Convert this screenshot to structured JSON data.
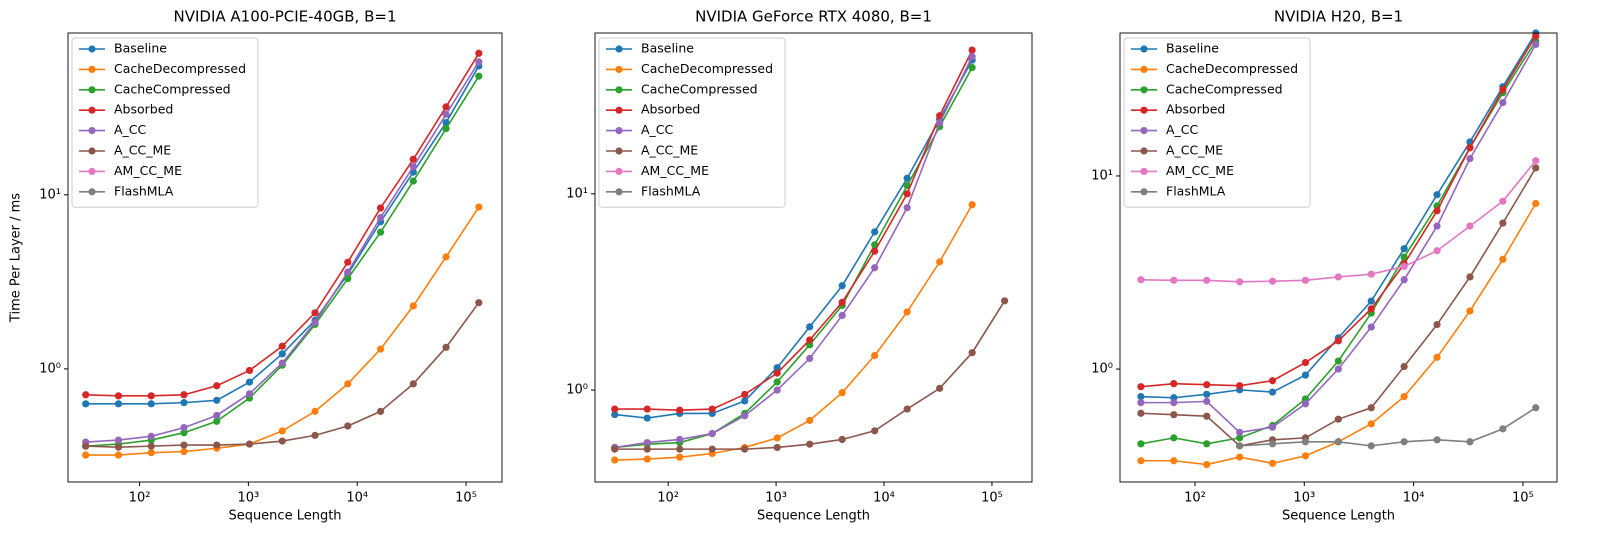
{
  "chart_data": [
    {
      "type": "line",
      "title": "NVIDIA A100-PCIE-40GB, B=1",
      "xlabel": "Sequence Length",
      "ylabel": "Time Per Layer / ms",
      "xscale": "log",
      "yscale": "log",
      "legend": "upper left",
      "x": [
        32,
        64,
        128,
        256,
        512,
        1024,
        2048,
        4096,
        8192,
        16384,
        32768,
        65536,
        131072
      ],
      "xlim": [
        22,
        214000
      ],
      "ylim": [
        0.224,
        85
      ],
      "xticks": [
        {
          "value": 100,
          "label": "10²"
        },
        {
          "value": 1000,
          "label": "10³"
        },
        {
          "value": 10000,
          "label": "10⁴"
        },
        {
          "value": 100000,
          "label": "10⁵"
        }
      ],
      "yticks": [
        {
          "value": 1,
          "label": "10⁰"
        },
        {
          "value": 10,
          "label": "10¹"
        }
      ],
      "series": [
        {
          "name": "Baseline",
          "color": "#1f77b4",
          "values": [
            0.63,
            0.63,
            0.63,
            0.64,
            0.66,
            0.84,
            1.22,
            1.9,
            3.5,
            7.0,
            13.5,
            26,
            55
          ]
        },
        {
          "name": "CacheDecompressed",
          "color": "#ff7f0e",
          "values": [
            0.32,
            0.32,
            0.33,
            0.335,
            0.35,
            0.37,
            0.44,
            0.57,
            0.82,
            1.3,
            2.3,
            4.4,
            8.5
          ]
        },
        {
          "name": "CacheCompressed",
          "color": "#2ca02c",
          "values": [
            0.36,
            0.37,
            0.39,
            0.43,
            0.5,
            0.68,
            1.05,
            1.8,
            3.3,
            6.1,
            12,
            24,
            48
          ]
        },
        {
          "name": "Absorbed",
          "color": "#d62728",
          "values": [
            0.71,
            0.7,
            0.7,
            0.71,
            0.8,
            0.98,
            1.35,
            2.1,
            4.1,
            8.4,
            16,
            32,
            65
          ]
        },
        {
          "name": "A_CC",
          "color": "#9467bd",
          "values": [
            0.38,
            0.39,
            0.41,
            0.46,
            0.54,
            0.72,
            1.08,
            1.85,
            3.6,
            7.4,
            14.5,
            29,
            58
          ]
        },
        {
          "name": "A_CC_ME",
          "color": "#8c564b",
          "values": [
            0.36,
            0.355,
            0.36,
            0.365,
            0.365,
            0.37,
            0.385,
            0.415,
            0.47,
            0.57,
            0.82,
            1.33,
            2.4
          ]
        },
        {
          "name": "AM_CC_ME",
          "color": "#e377c2",
          "values": [
            null,
            null,
            null,
            null,
            null,
            null,
            null,
            null,
            null,
            null,
            null,
            null,
            null
          ]
        },
        {
          "name": "FlashMLA",
          "color": "#7f7f7f",
          "values": [
            null,
            null,
            null,
            null,
            null,
            null,
            null,
            null,
            null,
            null,
            null,
            null,
            null
          ]
        }
      ]
    },
    {
      "type": "line",
      "title": "NVIDIA GeForce RTX 4080, B=1",
      "xlabel": "Sequence Length",
      "xscale": "log",
      "yscale": "log",
      "legend": "upper left",
      "x": [
        32,
        64,
        128,
        256,
        512,
        1024,
        2048,
        4096,
        8192,
        16384,
        32768,
        65536,
        131072
      ],
      "xlim": [
        21,
        235000
      ],
      "ylim": [
        0.34,
        66
      ],
      "xticks": [
        {
          "value": 100,
          "label": "10²"
        },
        {
          "value": 1000,
          "label": "10³"
        },
        {
          "value": 10000,
          "label": "10⁴"
        },
        {
          "value": 100000,
          "label": "10⁵"
        }
      ],
      "yticks": [
        {
          "value": 1,
          "label": "10⁰"
        },
        {
          "value": 10,
          "label": "10¹"
        }
      ],
      "series": [
        {
          "name": "Baseline",
          "color": "#1f77b4",
          "values": [
            0.75,
            0.72,
            0.76,
            0.76,
            0.88,
            1.3,
            2.1,
            3.4,
            6.4,
            12,
            24,
            48,
            null
          ]
        },
        {
          "name": "CacheDecompressed",
          "color": "#ff7f0e",
          "values": [
            0.44,
            0.445,
            0.455,
            0.475,
            0.51,
            0.57,
            0.7,
            0.97,
            1.5,
            2.5,
            4.5,
            8.8,
            null
          ]
        },
        {
          "name": "CacheCompressed",
          "color": "#2ca02c",
          "values": [
            0.51,
            0.53,
            0.54,
            0.6,
            0.76,
            1.1,
            1.7,
            2.7,
            5.5,
            11,
            22,
            44,
            null
          ]
        },
        {
          "name": "Absorbed",
          "color": "#d62728",
          "values": [
            0.8,
            0.8,
            0.79,
            0.8,
            0.95,
            1.22,
            1.8,
            2.8,
            5.1,
            10,
            25,
            54,
            null
          ]
        },
        {
          "name": "A_CC",
          "color": "#9467bd",
          "values": [
            0.51,
            0.54,
            0.56,
            0.6,
            0.74,
            1.0,
            1.45,
            2.4,
            4.2,
            8.5,
            23,
            50,
            null
          ]
        },
        {
          "name": "A_CC_ME",
          "color": "#8c564b",
          "values": [
            0.5,
            0.5,
            0.5,
            0.5,
            0.5,
            0.51,
            0.53,
            0.56,
            0.62,
            0.8,
            1.02,
            1.55,
            2.85
          ]
        },
        {
          "name": "AM_CC_ME",
          "color": "#e377c2",
          "values": [
            null,
            null,
            null,
            null,
            null,
            null,
            null,
            null,
            null,
            null,
            null,
            null,
            null
          ]
        },
        {
          "name": "FlashMLA",
          "color": "#7f7f7f",
          "values": [
            null,
            null,
            null,
            null,
            null,
            null,
            null,
            null,
            null,
            null,
            null,
            null,
            null
          ]
        }
      ]
    },
    {
      "type": "line",
      "title": "NVIDIA H20, B=1",
      "xlabel": "Sequence Length",
      "xscale": "log",
      "yscale": "log",
      "legend": "upper left",
      "x": [
        32,
        64,
        128,
        256,
        512,
        1024,
        2048,
        4096,
        8192,
        16384,
        32768,
        65536,
        131072
      ],
      "xlim": [
        20.6,
        205000
      ],
      "ylim": [
        0.26,
        55
      ],
      "xticks": [
        {
          "value": 100,
          "label": "10²"
        },
        {
          "value": 1000,
          "label": "10³"
        },
        {
          "value": 10000,
          "label": "10⁴"
        },
        {
          "value": 100000,
          "label": "10⁵"
        }
      ],
      "yticks": [
        {
          "value": 1,
          "label": "10⁰"
        },
        {
          "value": 10,
          "label": "10¹"
        }
      ],
      "series": [
        {
          "name": "Baseline",
          "color": "#1f77b4",
          "values": [
            0.72,
            0.71,
            0.74,
            0.78,
            0.76,
            0.93,
            1.45,
            2.25,
            4.2,
            8,
            15,
            29,
            55
          ]
        },
        {
          "name": "CacheDecompressed",
          "color": "#ff7f0e",
          "values": [
            0.335,
            0.335,
            0.32,
            0.35,
            0.325,
            0.355,
            0.42,
            0.52,
            0.72,
            1.15,
            2.0,
            3.7,
            7.2
          ]
        },
        {
          "name": "CacheCompressed",
          "color": "#2ca02c",
          "values": [
            0.41,
            0.44,
            0.41,
            0.44,
            0.51,
            0.7,
            1.1,
            1.95,
            3.8,
            7,
            14,
            27,
            50
          ]
        },
        {
          "name": "Absorbed",
          "color": "#d62728",
          "values": [
            0.81,
            0.84,
            0.83,
            0.82,
            0.87,
            1.08,
            1.4,
            2.05,
            3.5,
            6.6,
            14,
            28,
            53
          ]
        },
        {
          "name": "A_CC",
          "color": "#9467bd",
          "values": [
            0.67,
            0.67,
            0.68,
            0.47,
            0.5,
            0.66,
            1.0,
            1.65,
            2.9,
            5.5,
            12.3,
            24,
            48
          ]
        },
        {
          "name": "A_CC_ME",
          "color": "#8c564b",
          "values": [
            0.59,
            0.58,
            0.57,
            0.4,
            0.43,
            0.44,
            0.55,
            0.63,
            1.03,
            1.7,
            3.0,
            5.7,
            11
          ]
        },
        {
          "name": "AM_CC_ME",
          "color": "#e377c2",
          "values": [
            2.9,
            2.88,
            2.88,
            2.83,
            2.85,
            2.88,
            3.0,
            3.1,
            3.4,
            4.1,
            5.5,
            7.4,
            12
          ]
        },
        {
          "name": "FlashMLA",
          "color": "#7f7f7f",
          "values": [
            null,
            null,
            null,
            0.4,
            0.41,
            0.42,
            0.42,
            0.4,
            0.42,
            0.43,
            0.42,
            0.49,
            0.63
          ]
        }
      ]
    }
  ]
}
